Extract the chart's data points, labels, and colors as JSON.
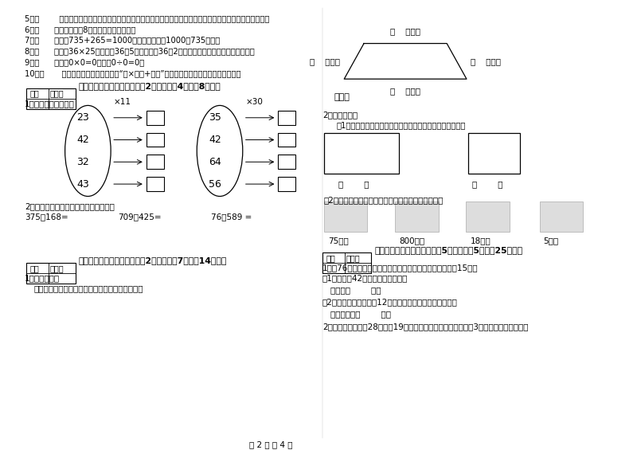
{
  "bg_color": "#ffffff",
  "page_num": "第 2 页 共 4 页",
  "left_col": {
    "items_5_to_10": [
      "5．（        ）用同一条铁丝先围成一个最大的正方形，再围成一个最大的长方形，长方形和正方形的周长相等。",
      "6．（      ）一个两位数8，积一定也是两位数。",
      "7．（      ）根据735+265=1000，可以直接写出1000－735的差。",
      "8．（      ）计算36×25时，先把36和5相乘，再把36和2相乘，最后把两次乘得的结果相加。",
      "9．（      ）因为0×0=0，所以0÷0=0。",
      "10．（       ）有余数除法的验算方法是“商×除数+余数”，看得到的结果是否与被除数相等。"
    ],
    "section4_title": "四、看清题目，细心计算（割2小题，每题4分，割8分）。",
    "calc1_label": "1．算一算，填一填。",
    "oval1_nums": [
      "23",
      "42",
      "32",
      "43"
    ],
    "oval1_op": "×11",
    "oval2_nums": [
      "35",
      "42",
      "64",
      "56"
    ],
    "oval2_op": "×30",
    "calc2_label": "2．竖式计算，要求验算的请写出验算。",
    "calc2_items": [
      "375＋168=",
      "709－425=",
      "76＋589 ="
    ],
    "section5_title": "五、认真思考，综合能力（割2小题，每题7分，列14分）。",
    "op1_label": "1．动手操作。",
    "op1_sub": "量出每条边的长度，以毫米为单位，并计算周长。"
  },
  "right_col": {
    "trap_labels": [
      "（    ）毫米",
      "（    ）毫米",
      "（    ）毫米",
      "（    ）毫米"
    ],
    "perimeter_label": "周长：",
    "section_practice": "2．实践操作：",
    "measure_label": "（1）、量出下面各图形中每条边的长度。（以毫米为单位）",
    "rect_labels": [
      "（        ）",
      "（        ）"
    ],
    "connect_label": "（2）、把每小时行的路程与合适的出行方式连起来。",
    "distances": [
      "75千米",
      "800千米",
      "18千米",
      "5千米"
    ],
    "section6_title": "六、活用知识，解决问题（割5小题，每题5分，列25分）。",
    "prob1_line1": "1．有76个座位的森林音乐厅将举行音乐会，每张票售价是15元。",
    "prob1_line2": "（1）已售出42张票，收款多少元？",
    "ans1a": "答：收款        元。",
    "prob1b": "（2）把剩余的票按每张12元全部售出，可以收款多少元？",
    "ans1b": "答：可以收款        元。",
    "prob2": "2．篮球场是一个长28米，刷19米的长方形，小明沿篮球场跑了3圈，他共跑了多少米？"
  }
}
